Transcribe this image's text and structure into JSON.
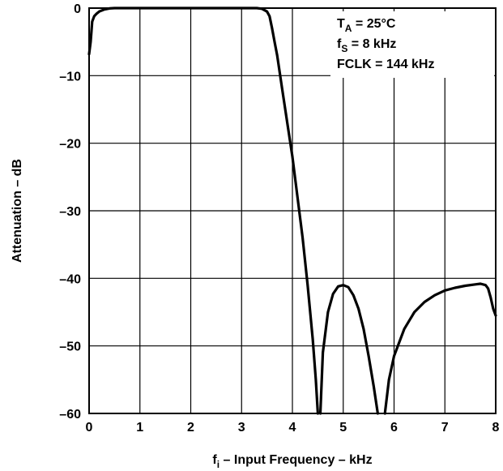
{
  "chart_data": {
    "type": "line",
    "title": "",
    "xlabel": {
      "f": "f",
      "sub": "i",
      "rest": " – Input Frequency – kHz"
    },
    "ylabel": "Attenuation – dB",
    "xlim": [
      0,
      8
    ],
    "ylim": [
      -60,
      0
    ],
    "x_ticks": [
      "0",
      "1",
      "2",
      "3",
      "4",
      "5",
      "6",
      "7",
      "8"
    ],
    "y_ticks": [
      "0",
      "–10",
      "–20",
      "–30",
      "–40",
      "–50",
      "–60"
    ],
    "grid": true,
    "annotations": [
      {
        "main": "T",
        "sub": "A",
        "rest": " = 25°C"
      },
      {
        "main": "f",
        "sub": "S",
        "rest": " = 8 kHz"
      },
      {
        "main": "FCLK = 144 kHz",
        "sub": "",
        "rest": ""
      }
    ],
    "series": [
      {
        "x": [
          0.0,
          0.03,
          0.06,
          0.1,
          0.15,
          0.2,
          0.3,
          0.4,
          0.5,
          0.6,
          0.8,
          1.0,
          1.5,
          2.0,
          2.5,
          3.0,
          3.3,
          3.4,
          3.5,
          3.55,
          3.6,
          3.65,
          3.7,
          3.8,
          3.9,
          4.0,
          4.1,
          4.2,
          4.3,
          4.4,
          4.46,
          4.5
        ],
        "y": [
          -6.8,
          -5.0,
          -2.0,
          -1.2,
          -0.8,
          -0.5,
          -0.2,
          -0.05,
          0.0,
          0.0,
          0.0,
          0.0,
          0.0,
          0.0,
          0.0,
          0.0,
          0.0,
          -0.1,
          -0.5,
          -1.2,
          -3.0,
          -5.0,
          -7.0,
          -12.0,
          -17.0,
          -22.0,
          -28.0,
          -34.0,
          -41.0,
          -49.0,
          -55.0,
          -60.0
        ]
      },
      {
        "x": [
          4.55,
          4.6,
          4.7,
          4.8,
          4.9,
          5.0,
          5.1,
          5.2,
          5.3,
          5.4,
          5.5,
          5.6,
          5.68
        ],
        "y": [
          -60.0,
          -51.0,
          -45.0,
          -42.3,
          -41.2,
          -41.0,
          -41.3,
          -42.5,
          -44.5,
          -47.5,
          -51.5,
          -56.0,
          -60.0
        ]
      },
      {
        "x": [
          5.82,
          5.9,
          6.0,
          6.2,
          6.4,
          6.6,
          6.8,
          7.0,
          7.2,
          7.4,
          7.6,
          7.7,
          7.8,
          7.85,
          7.9,
          7.95,
          8.0
        ],
        "y": [
          -60.0,
          -55.0,
          -51.5,
          -47.5,
          -45.0,
          -43.5,
          -42.5,
          -41.8,
          -41.4,
          -41.1,
          -40.9,
          -40.8,
          -41.0,
          -41.5,
          -42.8,
          -44.5,
          -45.5
        ]
      }
    ]
  }
}
